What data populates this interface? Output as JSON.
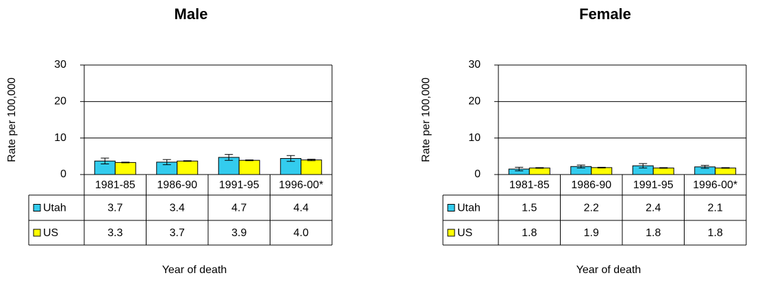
{
  "chart_data": [
    {
      "type": "bar",
      "title": "Male",
      "y_label": "Rate per 100,000",
      "x_label": "Year of death",
      "categories": [
        "1981-85",
        "1986-90",
        "1991-95",
        "1996-00*"
      ],
      "series": [
        {
          "name": "Utah",
          "color": "#33ccee",
          "values": [
            3.7,
            3.4,
            4.7,
            4.4
          ],
          "value_labels": [
            "3.7",
            "3.4",
            "4.7",
            "4.4"
          ],
          "errors": [
            0.8,
            0.7,
            0.8,
            0.8
          ]
        },
        {
          "name": "US",
          "color": "#ffff00",
          "values": [
            3.3,
            3.7,
            3.9,
            4.0
          ],
          "value_labels": [
            "3.3",
            "3.7",
            "3.9",
            "4.0"
          ],
          "errors": [
            0.1,
            0.1,
            0.1,
            0.2
          ]
        }
      ],
      "ylim": [
        0,
        30
      ],
      "yticks": [
        0,
        10,
        20,
        30
      ],
      "grid": true
    },
    {
      "type": "bar",
      "title": "Female",
      "y_label": "Rate per 100,000",
      "x_label": "Year of death",
      "categories": [
        "1981-85",
        "1986-90",
        "1991-95",
        "1996-00*"
      ],
      "series": [
        {
          "name": "Utah",
          "color": "#33ccee",
          "values": [
            1.5,
            2.2,
            2.4,
            2.1
          ],
          "value_labels": [
            "1.5",
            "2.2",
            "2.4",
            "2.1"
          ],
          "errors": [
            0.5,
            0.4,
            0.6,
            0.4
          ]
        },
        {
          "name": "US",
          "color": "#ffff00",
          "values": [
            1.8,
            1.9,
            1.8,
            1.8
          ],
          "value_labels": [
            "1.8",
            "1.9",
            "1.8",
            "1.8"
          ],
          "errors": [
            0.1,
            0.1,
            0.1,
            0.1
          ]
        }
      ],
      "ylim": [
        0,
        30
      ],
      "yticks": [
        0,
        10,
        20,
        30
      ],
      "grid": true
    }
  ]
}
